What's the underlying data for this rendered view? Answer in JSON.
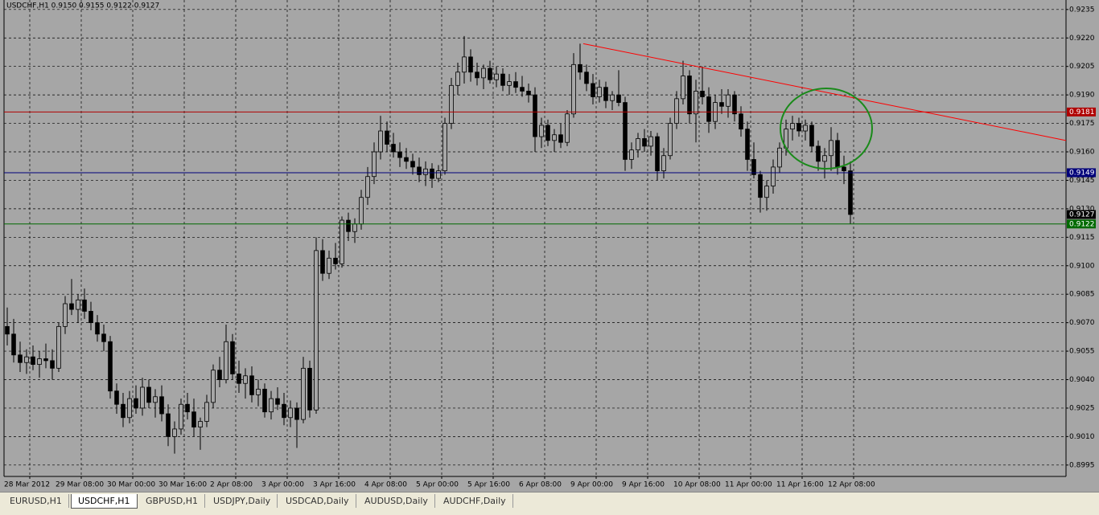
{
  "chart_data": {
    "type": "candlestick",
    "title": "USDCHF,H1  0.9150 0.9155 0.9122 0.9127",
    "up_color": "#a6a6a6",
    "down_color": "#000000",
    "grid": true,
    "xlim": [
      0,
      165
    ],
    "ylim": [
      0.8989,
      0.924
    ],
    "xticks": [
      {
        "value": 4,
        "label": "28 Mar 2012"
      },
      {
        "value": 12,
        "label": "29 Mar 08:00"
      },
      {
        "value": 20,
        "label": "30 Mar 00:00"
      },
      {
        "value": 28,
        "label": "30 Mar 16:00"
      },
      {
        "value": 36,
        "label": "2 Apr 08:00"
      },
      {
        "value": 44,
        "label": "3 Apr 00:00"
      },
      {
        "value": 52,
        "label": "3 Apr 16:00"
      },
      {
        "value": 60,
        "label": "4 Apr 08:00"
      },
      {
        "value": 68,
        "label": "5 Apr 00:00"
      },
      {
        "value": 76,
        "label": "5 Apr 16:00"
      },
      {
        "value": 84,
        "label": "6 Apr 08:00"
      },
      {
        "value": 92,
        "label": "9 Apr 00:00"
      },
      {
        "value": 100,
        "label": "9 Apr 16:00"
      },
      {
        "value": 108,
        "label": "10 Apr 08:00"
      },
      {
        "value": 116,
        "label": "11 Apr 00:00"
      },
      {
        "value": 124,
        "label": "11 Apr 16:00"
      },
      {
        "value": 132,
        "label": "12 Apr 08:00"
      }
    ],
    "yticks": [
      0.9235,
      {
        "value": 0.922,
        "label": "0.9220"
      },
      0.9205,
      {
        "value": 0.919,
        "label": "0.9190"
      },
      0.9175,
      {
        "value": 0.916,
        "label": "0.9160"
      },
      0.9145,
      {
        "value": 0.913,
        "label": "0.9130"
      },
      0.9115,
      {
        "value": 0.91,
        "label": "0.9100"
      },
      0.9085,
      {
        "value": 0.907,
        "label": "0.9070"
      },
      0.9055,
      {
        "value": 0.904,
        "label": "0.9040"
      },
      0.9025,
      {
        "value": 0.901,
        "label": "0.9010"
      },
      0.8995
    ],
    "ohlc": [
      [
        0.9068,
        0.9078,
        0.9058,
        0.9064
      ],
      [
        0.9064,
        0.9072,
        0.9049,
        0.9053
      ],
      [
        0.9053,
        0.906,
        0.9044,
        0.9049
      ],
      [
        0.9049,
        0.9056,
        0.9043,
        0.9052
      ],
      [
        0.9052,
        0.9058,
        0.9045,
        0.9048
      ],
      [
        0.9048,
        0.9055,
        0.9041,
        0.9051
      ],
      [
        0.9051,
        0.9059,
        0.9046,
        0.905
      ],
      [
        0.905,
        0.9056,
        0.904,
        0.9046
      ],
      [
        0.9046,
        0.907,
        0.9044,
        0.9068
      ],
      [
        0.9068,
        0.9084,
        0.9064,
        0.908
      ],
      [
        0.908,
        0.9093,
        0.9074,
        0.9077
      ],
      [
        0.9077,
        0.9085,
        0.907,
        0.9082
      ],
      [
        0.9082,
        0.9088,
        0.9072,
        0.9076
      ],
      [
        0.9076,
        0.9081,
        0.9066,
        0.907
      ],
      [
        0.907,
        0.9074,
        0.906,
        0.9064
      ],
      [
        0.9064,
        0.9069,
        0.9055,
        0.906
      ],
      [
        0.906,
        0.9063,
        0.903,
        0.9034
      ],
      [
        0.9034,
        0.9038,
        0.9022,
        0.9027
      ],
      [
        0.9027,
        0.9033,
        0.9015,
        0.902
      ],
      [
        0.902,
        0.9034,
        0.9017,
        0.903
      ],
      [
        0.903,
        0.9037,
        0.9022,
        0.9025
      ],
      [
        0.9025,
        0.9041,
        0.9021,
        0.9036
      ],
      [
        0.9036,
        0.904,
        0.9025,
        0.9028
      ],
      [
        0.9028,
        0.9035,
        0.902,
        0.9031
      ],
      [
        0.9031,
        0.9037,
        0.9018,
        0.9022
      ],
      [
        0.9022,
        0.9027,
        0.9005,
        0.901
      ],
      [
        0.901,
        0.9018,
        0.9001,
        0.9014
      ],
      [
        0.9014,
        0.903,
        0.9011,
        0.9027
      ],
      [
        0.9027,
        0.9033,
        0.9019,
        0.9023
      ],
      [
        0.9023,
        0.903,
        0.901,
        0.9015
      ],
      [
        0.9015,
        0.902,
        0.9003,
        0.9018
      ],
      [
        0.9018,
        0.9032,
        0.9015,
        0.9028
      ],
      [
        0.9028,
        0.9048,
        0.9025,
        0.9045
      ],
      [
        0.9045,
        0.9052,
        0.9036,
        0.904
      ],
      [
        0.904,
        0.9069,
        0.9038,
        0.906
      ],
      [
        0.906,
        0.9064,
        0.904,
        0.9043
      ],
      [
        0.9043,
        0.905,
        0.9033,
        0.9038
      ],
      [
        0.9038,
        0.9046,
        0.903,
        0.9042
      ],
      [
        0.9042,
        0.9047,
        0.9028,
        0.9032
      ],
      [
        0.9032,
        0.904,
        0.9026,
        0.9035
      ],
      [
        0.9035,
        0.9038,
        0.902,
        0.9023
      ],
      [
        0.9023,
        0.9034,
        0.9019,
        0.903
      ],
      [
        0.903,
        0.9036,
        0.9024,
        0.9027
      ],
      [
        0.9027,
        0.9033,
        0.9016,
        0.902
      ],
      [
        0.902,
        0.9029,
        0.9015,
        0.9025
      ],
      [
        0.9025,
        0.9028,
        0.9004,
        0.9019
      ],
      [
        0.9019,
        0.9052,
        0.9017,
        0.9046
      ],
      [
        0.9046,
        0.905,
        0.902,
        0.9024
      ],
      [
        0.9024,
        0.9115,
        0.9022,
        0.9108
      ],
      [
        0.9108,
        0.9114,
        0.9092,
        0.9096
      ],
      [
        0.9096,
        0.9108,
        0.9093,
        0.9104
      ],
      [
        0.9104,
        0.9112,
        0.9098,
        0.9101
      ],
      [
        0.9101,
        0.9126,
        0.9099,
        0.9124
      ],
      [
        0.9124,
        0.9128,
        0.9113,
        0.9118
      ],
      [
        0.9118,
        0.9125,
        0.9112,
        0.9122
      ],
      [
        0.9122,
        0.914,
        0.9119,
        0.9136
      ],
      [
        0.9136,
        0.9152,
        0.9132,
        0.9147
      ],
      [
        0.9147,
        0.9165,
        0.9143,
        0.916
      ],
      [
        0.916,
        0.9179,
        0.9156,
        0.9171
      ],
      [
        0.9171,
        0.9176,
        0.916,
        0.9164
      ],
      [
        0.9164,
        0.917,
        0.9157,
        0.916
      ],
      [
        0.916,
        0.9165,
        0.9152,
        0.9157
      ],
      [
        0.9157,
        0.9162,
        0.9151,
        0.9155
      ],
      [
        0.9155,
        0.9159,
        0.9148,
        0.9152
      ],
      [
        0.9152,
        0.9157,
        0.9144,
        0.9148
      ],
      [
        0.9148,
        0.9155,
        0.9142,
        0.9151
      ],
      [
        0.9151,
        0.9154,
        0.9141,
        0.9146
      ],
      [
        0.9146,
        0.9153,
        0.9144,
        0.915
      ],
      [
        0.915,
        0.9178,
        0.9148,
        0.9175
      ],
      [
        0.9175,
        0.9199,
        0.9172,
        0.9195
      ],
      [
        0.9195,
        0.9207,
        0.919,
        0.9202
      ],
      [
        0.9202,
        0.9221,
        0.9196,
        0.921
      ],
      [
        0.921,
        0.9214,
        0.9197,
        0.9202
      ],
      [
        0.9202,
        0.9207,
        0.9195,
        0.9199
      ],
      [
        0.9199,
        0.9206,
        0.9193,
        0.9204
      ],
      [
        0.9204,
        0.9208,
        0.9196,
        0.9198
      ],
      [
        0.9198,
        0.9205,
        0.9194,
        0.9201
      ],
      [
        0.9201,
        0.9204,
        0.9192,
        0.9195
      ],
      [
        0.9195,
        0.9201,
        0.919,
        0.9197
      ],
      [
        0.9197,
        0.9202,
        0.9191,
        0.9194
      ],
      [
        0.9194,
        0.92,
        0.9189,
        0.9192
      ],
      [
        0.9192,
        0.9196,
        0.9186,
        0.919
      ],
      [
        0.919,
        0.9194,
        0.916,
        0.9168
      ],
      [
        0.9168,
        0.9178,
        0.9162,
        0.9174
      ],
      [
        0.9174,
        0.9177,
        0.9163,
        0.9166
      ],
      [
        0.9166,
        0.9172,
        0.916,
        0.9169
      ],
      [
        0.9169,
        0.9175,
        0.9162,
        0.9165
      ],
      [
        0.9165,
        0.9182,
        0.9163,
        0.918
      ],
      [
        0.918,
        0.9212,
        0.9178,
        0.9206
      ],
      [
        0.9206,
        0.9217,
        0.9198,
        0.9202
      ],
      [
        0.9202,
        0.9206,
        0.9192,
        0.9196
      ],
      [
        0.9196,
        0.9201,
        0.9185,
        0.9189
      ],
      [
        0.9189,
        0.9198,
        0.9186,
        0.9194
      ],
      [
        0.9194,
        0.9197,
        0.9183,
        0.9187
      ],
      [
        0.9187,
        0.9192,
        0.9182,
        0.919
      ],
      [
        0.919,
        0.9203,
        0.9184,
        0.9186
      ],
      [
        0.9186,
        0.9189,
        0.915,
        0.9156
      ],
      [
        0.9156,
        0.9165,
        0.9151,
        0.9161
      ],
      [
        0.9161,
        0.917,
        0.9157,
        0.9167
      ],
      [
        0.9167,
        0.9172,
        0.916,
        0.9163
      ],
      [
        0.9163,
        0.9171,
        0.9158,
        0.9168
      ],
      [
        0.9168,
        0.917,
        0.9145,
        0.915
      ],
      [
        0.915,
        0.9162,
        0.9146,
        0.9158
      ],
      [
        0.9158,
        0.9178,
        0.9156,
        0.9175
      ],
      [
        0.9175,
        0.9192,
        0.9172,
        0.9188
      ],
      [
        0.9188,
        0.9208,
        0.9185,
        0.92
      ],
      [
        0.92,
        0.9203,
        0.9175,
        0.918
      ],
      [
        0.918,
        0.9198,
        0.9165,
        0.9192
      ],
      [
        0.9192,
        0.9205,
        0.9185,
        0.9189
      ],
      [
        0.9189,
        0.9194,
        0.917,
        0.9176
      ],
      [
        0.9176,
        0.919,
        0.9172,
        0.9186
      ],
      [
        0.9186,
        0.9193,
        0.918,
        0.9184
      ],
      [
        0.9184,
        0.9193,
        0.9178,
        0.919
      ],
      [
        0.919,
        0.9192,
        0.9176,
        0.918
      ],
      [
        0.918,
        0.9184,
        0.9168,
        0.9172
      ],
      [
        0.9172,
        0.9176,
        0.915,
        0.9156
      ],
      [
        0.9156,
        0.9165,
        0.9146,
        0.9148
      ],
      [
        0.9148,
        0.915,
        0.9128,
        0.9136
      ],
      [
        0.9136,
        0.9145,
        0.9129,
        0.9142
      ],
      [
        0.9142,
        0.9156,
        0.9138,
        0.9152
      ],
      [
        0.9152,
        0.9165,
        0.9149,
        0.9162
      ],
      [
        0.9162,
        0.9177,
        0.9158,
        0.9172
      ],
      [
        0.9172,
        0.9179,
        0.9166,
        0.9175
      ],
      [
        0.9175,
        0.9178,
        0.9168,
        0.9171
      ],
      [
        0.9171,
        0.9177,
        0.9166,
        0.9174
      ],
      [
        0.9174,
        0.9176,
        0.916,
        0.9163
      ],
      [
        0.9163,
        0.9166,
        0.915,
        0.9155
      ],
      [
        0.9155,
        0.9162,
        0.9146,
        0.9158
      ],
      [
        0.9158,
        0.9173,
        0.915,
        0.9166
      ],
      [
        0.9166,
        0.917,
        0.9148,
        0.9152
      ],
      [
        0.9152,
        0.9158,
        0.9143,
        0.915
      ],
      [
        0.915,
        0.9155,
        0.9122,
        0.9127
      ]
    ],
    "levels": [
      {
        "value": 0.9181,
        "color": "#b00000"
      },
      {
        "value": 0.9149,
        "color": "#00007a"
      },
      {
        "value": 0.9122,
        "color": "#006a00"
      }
    ],
    "last_price": 0.9127,
    "trendline": {
      "x": [
        90,
        165
      ],
      "y": [
        0.9217,
        0.9166
      ],
      "color": "#ff0000"
    }
  },
  "tabs": [
    "EURUSD,H1",
    "USDCHF,H1",
    "GBPUSD,H1",
    "USDJPY,Daily",
    "USDCAD,Daily",
    "AUDUSD,Daily",
    "AUDCHF,Daily"
  ],
  "active_tab": 1
}
